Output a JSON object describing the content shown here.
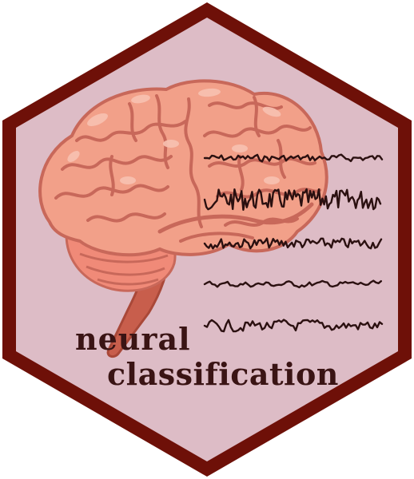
{
  "logo": {
    "line1": "neural",
    "line2": "classification"
  },
  "colors": {
    "hex_border": "#6e1008",
    "hex_fill": "#ddbcc6",
    "brain_main": "#f2a089",
    "brain_dark": "#c8685a",
    "brain_light": "#f8c2b2",
    "cerebellum": "#f08a78",
    "stem": "#c85e4c",
    "waves": "#2b1010",
    "text": "#3a1414"
  },
  "icons": [
    "brain-icon",
    "eeg-waves-icon"
  ]
}
